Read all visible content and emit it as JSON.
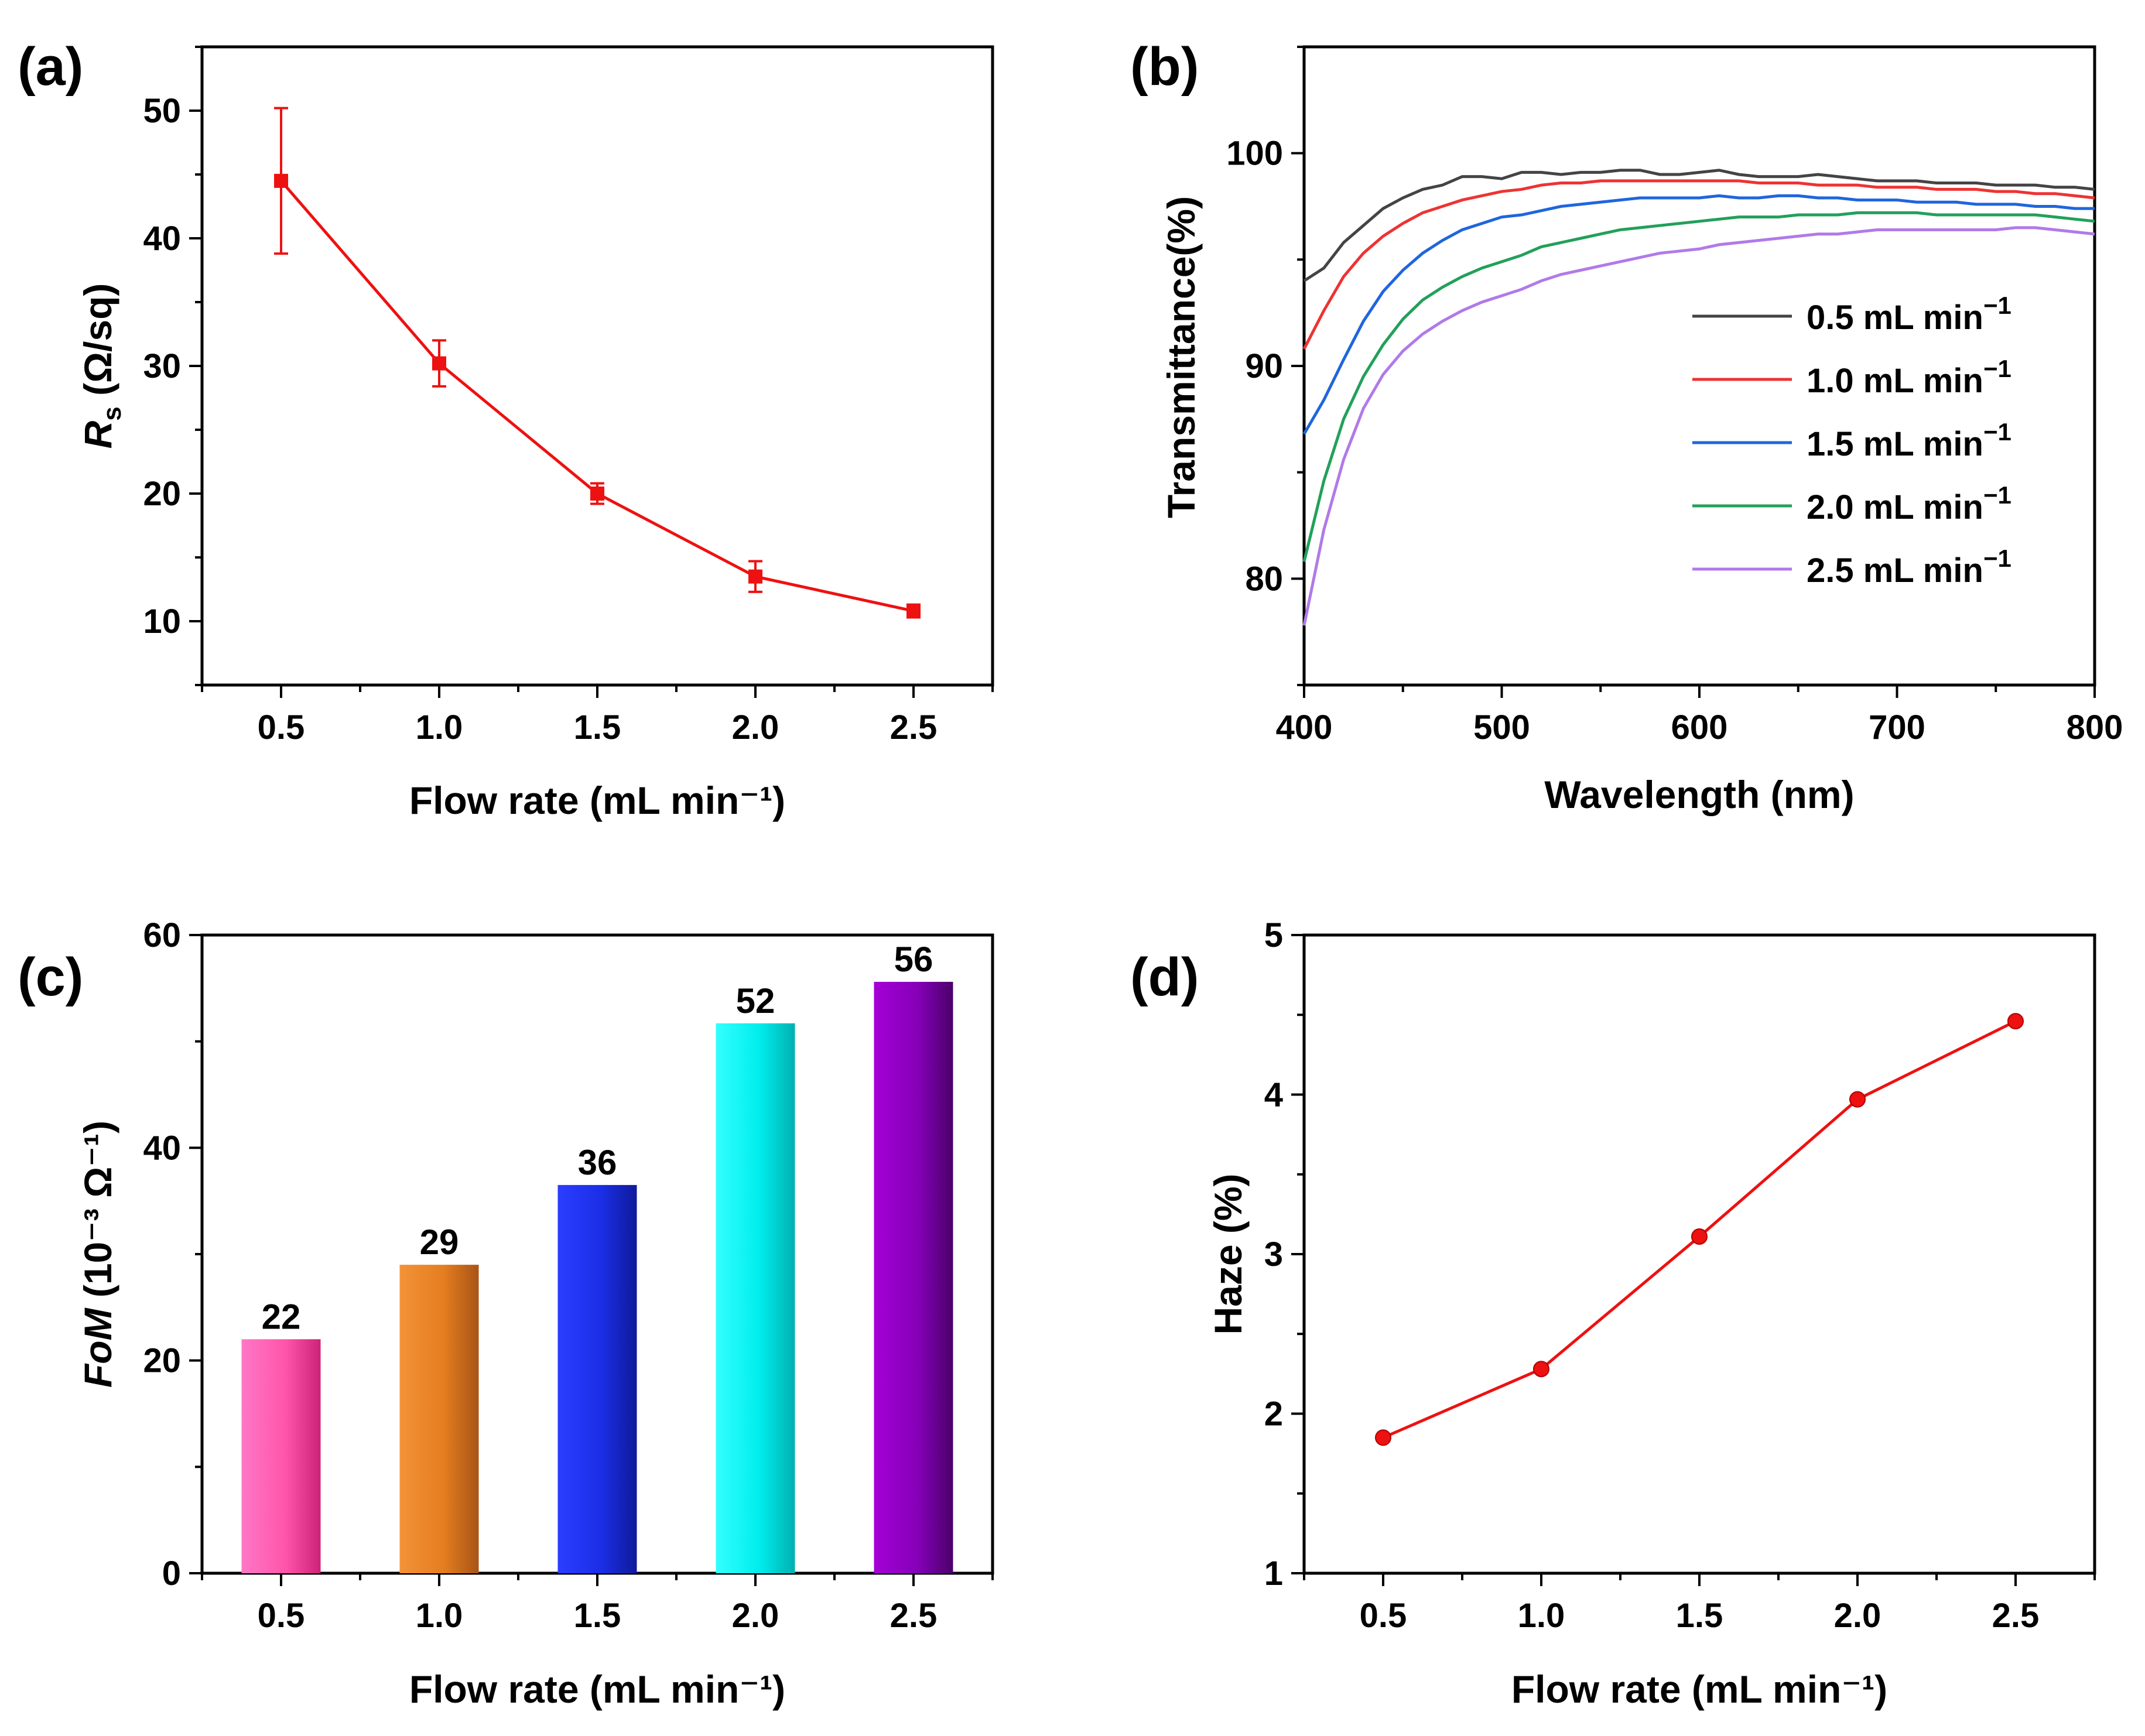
{
  "chart_data": [
    {
      "panel": "(a)",
      "type": "line",
      "xlabel": "Flow rate (mL min⁻¹)",
      "ylabel": "R",
      "ylabel_sub": "s",
      "ylabel_rest": " (Ω/sq)",
      "xlim": [
        0.25,
        2.75
      ],
      "ylim": [
        5,
        55
      ],
      "xticks": [
        "0.5",
        "1.0",
        "1.5",
        "2.0",
        "2.5"
      ],
      "yticks": [
        "10",
        "20",
        "30",
        "40",
        "50"
      ],
      "x": [
        0.5,
        1.0,
        1.5,
        2.0,
        2.5
      ],
      "y": [
        44.5,
        30.2,
        20.0,
        13.5,
        10.8
      ],
      "yerr": [
        5.7,
        1.8,
        0.8,
        1.2,
        0.5
      ],
      "color": "#ee1111"
    },
    {
      "panel": "(b)",
      "type": "line",
      "xlabel": "Wavelength (nm)",
      "ylabel": "Transmittance(%)",
      "xlim": [
        400,
        800
      ],
      "ylim": [
        75,
        105
      ],
      "xticks": [
        "400",
        "500",
        "600",
        "700",
        "800"
      ],
      "yticks": [
        "80",
        "90",
        "100"
      ],
      "x": [
        400,
        410,
        420,
        430,
        440,
        450,
        460,
        470,
        480,
        490,
        500,
        510,
        520,
        530,
        540,
        550,
        560,
        570,
        580,
        590,
        600,
        610,
        620,
        630,
        640,
        650,
        660,
        670,
        680,
        690,
        700,
        710,
        720,
        730,
        740,
        750,
        760,
        770,
        780,
        790,
        800
      ],
      "series": [
        {
          "name": "0.5 mL min",
          "color": "#444444",
          "values": [
            94.0,
            94.6,
            95.8,
            96.6,
            97.4,
            97.9,
            98.3,
            98.5,
            98.9,
            98.9,
            98.8,
            99.1,
            99.1,
            99.0,
            99.1,
            99.1,
            99.2,
            99.2,
            99.0,
            99.0,
            99.1,
            99.2,
            99.0,
            98.9,
            98.9,
            98.9,
            99.0,
            98.9,
            98.8,
            98.7,
            98.7,
            98.7,
            98.6,
            98.6,
            98.6,
            98.5,
            98.5,
            98.5,
            98.4,
            98.4,
            98.3
          ]
        },
        {
          "name": "1.0 mL min",
          "color": "#ee3333",
          "values": [
            90.8,
            92.6,
            94.2,
            95.3,
            96.1,
            96.7,
            97.2,
            97.5,
            97.8,
            98.0,
            98.2,
            98.3,
            98.5,
            98.6,
            98.6,
            98.7,
            98.7,
            98.7,
            98.7,
            98.7,
            98.7,
            98.7,
            98.7,
            98.6,
            98.6,
            98.6,
            98.5,
            98.5,
            98.5,
            98.4,
            98.4,
            98.4,
            98.3,
            98.3,
            98.3,
            98.2,
            98.2,
            98.1,
            98.1,
            98.0,
            97.9
          ]
        },
        {
          "name": "1.5 mL min",
          "color": "#1f66dd",
          "values": [
            86.8,
            88.4,
            90.3,
            92.1,
            93.5,
            94.5,
            95.3,
            95.9,
            96.4,
            96.7,
            97.0,
            97.1,
            97.3,
            97.5,
            97.6,
            97.7,
            97.8,
            97.9,
            97.9,
            97.9,
            97.9,
            98.0,
            97.9,
            97.9,
            98.0,
            98.0,
            97.9,
            97.9,
            97.8,
            97.8,
            97.8,
            97.7,
            97.7,
            97.7,
            97.6,
            97.6,
            97.6,
            97.5,
            97.5,
            97.4,
            97.4
          ]
        },
        {
          "name": "2.0 mL min",
          "color": "#22a05a",
          "values": [
            80.8,
            84.6,
            87.5,
            89.5,
            91.0,
            92.2,
            93.1,
            93.7,
            94.2,
            94.6,
            94.9,
            95.2,
            95.6,
            95.8,
            96.0,
            96.2,
            96.4,
            96.5,
            96.6,
            96.7,
            96.8,
            96.9,
            97.0,
            97.0,
            97.0,
            97.1,
            97.1,
            97.1,
            97.2,
            97.2,
            97.2,
            97.2,
            97.1,
            97.1,
            97.1,
            97.1,
            97.1,
            97.1,
            97.0,
            96.9,
            96.8
          ]
        },
        {
          "name": "2.5 mL min",
          "color": "#b07ae8",
          "values": [
            77.8,
            82.3,
            85.6,
            88.0,
            89.6,
            90.7,
            91.5,
            92.1,
            92.6,
            93.0,
            93.3,
            93.6,
            94.0,
            94.3,
            94.5,
            94.7,
            94.9,
            95.1,
            95.3,
            95.4,
            95.5,
            95.7,
            95.8,
            95.9,
            96.0,
            96.1,
            96.2,
            96.2,
            96.3,
            96.4,
            96.4,
            96.4,
            96.4,
            96.4,
            96.4,
            96.4,
            96.5,
            96.5,
            96.4,
            96.3,
            96.2
          ]
        }
      ],
      "legend_unit": "mL min",
      "legend_exp": "−1",
      "legend_placement": "right"
    },
    {
      "panel": "(c)",
      "type": "bar",
      "xlabel": "Flow rate (mL min⁻¹)",
      "ylabel_italic": "FoM",
      "ylabel_rest": " (10⁻³ Ω⁻¹)",
      "ylim": [
        0,
        60
      ],
      "yticks": [
        "0",
        "20",
        "40",
        "60"
      ],
      "categories": [
        "0.5",
        "1.0",
        "1.5",
        "2.0",
        "2.5"
      ],
      "values": [
        22,
        29,
        36.5,
        51.7,
        55.6
      ],
      "value_labels": [
        "22",
        "29",
        "36",
        "52",
        "56"
      ],
      "bar_colors": [
        [
          "#ff77c6",
          "#ff55aa",
          "#cc2277"
        ],
        [
          "#f39238",
          "#e57e20",
          "#a85417"
        ],
        [
          "#2b3dff",
          "#1b2ee6",
          "#0f1a99"
        ],
        [
          "#33ffff",
          "#00eded",
          "#00b0b0"
        ],
        [
          "#a400d6",
          "#8600b8",
          "#4a006a"
        ]
      ]
    },
    {
      "panel": "(d)",
      "type": "line",
      "xlabel": "Flow rate (mL min⁻¹)",
      "ylabel": "Haze (%)",
      "xlim": [
        0.25,
        2.75
      ],
      "ylim": [
        1,
        5
      ],
      "xticks": [
        "0.5",
        "1.0",
        "1.5",
        "2.0",
        "2.5"
      ],
      "yticks": [
        "1",
        "2",
        "3",
        "4",
        "5"
      ],
      "x": [
        0.5,
        1.0,
        1.5,
        2.0,
        2.5
      ],
      "y": [
        1.85,
        2.28,
        3.11,
        3.97,
        4.46
      ],
      "color": "#ee1111"
    }
  ]
}
